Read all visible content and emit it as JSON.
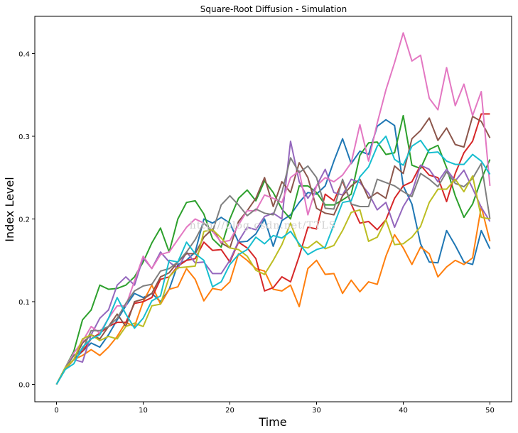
{
  "chart_data": {
    "type": "line",
    "title": "Square-Root Diffusion - Simulation",
    "xlabel": "Time",
    "ylabel": "Index Level",
    "xlim": [
      -2.5,
      52.5
    ],
    "ylim": [
      -0.021,
      0.445
    ],
    "xticks": [
      0,
      10,
      20,
      30,
      40,
      50
    ],
    "xtick_labels": [
      "0",
      "10",
      "20",
      "30",
      "40",
      "50"
    ],
    "yticks": [
      0.0,
      0.1,
      0.2,
      0.3,
      0.4
    ],
    "ytick_labels": [
      "0.0",
      "0.1",
      "0.2",
      "0.3",
      "0.4"
    ],
    "grid": false,
    "legend": "none",
    "x": [
      0,
      1,
      2,
      3,
      4,
      5,
      6,
      7,
      8,
      9,
      10,
      11,
      12,
      13,
      14,
      15,
      16,
      17,
      18,
      19,
      20,
      21,
      22,
      23,
      24,
      25,
      26,
      27,
      28,
      29,
      30,
      31,
      32,
      33,
      34,
      35,
      36,
      37,
      38,
      39,
      40,
      41,
      42,
      43,
      44,
      45,
      46,
      47,
      48,
      49,
      50
    ],
    "series": [
      {
        "color": "#1f77b4",
        "values": [
          0.0,
          0.018,
          0.03,
          0.04,
          0.05,
          0.045,
          0.06,
          0.078,
          0.095,
          0.11,
          0.105,
          0.11,
          0.1,
          0.115,
          0.145,
          0.15,
          0.16,
          0.2,
          0.195,
          0.202,
          0.195,
          0.172,
          0.173,
          0.182,
          0.2,
          0.167,
          0.198,
          0.205,
          0.22,
          0.232,
          0.23,
          0.24,
          0.27,
          0.297,
          0.267,
          0.282,
          0.278,
          0.312,
          0.32,
          0.313,
          0.24,
          0.218,
          0.17,
          0.148,
          0.147,
          0.186,
          0.168,
          0.148,
          0.145,
          0.186,
          0.164
        ]
      },
      {
        "color": "#ff7f0e",
        "values": [
          0.0,
          0.018,
          0.03,
          0.035,
          0.042,
          0.035,
          0.045,
          0.058,
          0.075,
          0.07,
          0.1,
          0.12,
          0.097,
          0.115,
          0.118,
          0.14,
          0.127,
          0.101,
          0.116,
          0.114,
          0.124,
          0.158,
          0.15,
          0.14,
          0.137,
          0.115,
          0.113,
          0.12,
          0.094,
          0.14,
          0.15,
          0.133,
          0.134,
          0.11,
          0.126,
          0.112,
          0.124,
          0.121,
          0.155,
          0.181,
          0.165,
          0.145,
          0.166,
          0.158,
          0.13,
          0.142,
          0.15,
          0.145,
          0.153,
          0.215,
          0.173
        ]
      },
      {
        "color": "#2ca02c",
        "values": [
          0.0,
          0.02,
          0.04,
          0.078,
          0.09,
          0.12,
          0.115,
          0.116,
          0.12,
          0.13,
          0.148,
          0.171,
          0.189,
          0.16,
          0.2,
          0.22,
          0.222,
          0.206,
          0.176,
          0.166,
          0.2,
          0.225,
          0.235,
          0.222,
          0.246,
          0.232,
          0.212,
          0.2,
          0.24,
          0.24,
          0.232,
          0.217,
          0.217,
          0.223,
          0.23,
          0.277,
          0.292,
          0.293,
          0.278,
          0.28,
          0.325,
          0.265,
          0.261,
          0.284,
          0.289,
          0.262,
          0.228,
          0.202,
          0.218,
          0.248,
          0.272
        ]
      },
      {
        "color": "#d62728",
        "values": [
          0.0,
          0.02,
          0.035,
          0.04,
          0.055,
          0.062,
          0.07,
          0.075,
          0.075,
          0.098,
          0.1,
          0.105,
          0.127,
          0.13,
          0.143,
          0.15,
          0.152,
          0.172,
          0.162,
          0.163,
          0.148,
          0.172,
          0.165,
          0.152,
          0.113,
          0.117,
          0.13,
          0.124,
          0.155,
          0.19,
          0.188,
          0.23,
          0.222,
          0.246,
          0.218,
          0.195,
          0.197,
          0.187,
          0.199,
          0.225,
          0.24,
          0.245,
          0.265,
          0.253,
          0.25,
          0.221,
          0.255,
          0.28,
          0.294,
          0.327,
          0.327
        ]
      },
      {
        "color": "#9467bd",
        "values": [
          0.0,
          0.02,
          0.03,
          0.027,
          0.06,
          0.08,
          0.09,
          0.12,
          0.13,
          0.12,
          0.153,
          0.14,
          0.16,
          0.148,
          0.14,
          0.16,
          0.147,
          0.148,
          0.134,
          0.134,
          0.15,
          0.173,
          0.19,
          0.187,
          0.203,
          0.207,
          0.2,
          0.294,
          0.245,
          0.225,
          0.24,
          0.26,
          0.232,
          0.229,
          0.248,
          0.244,
          0.231,
          0.211,
          0.22,
          0.19,
          0.215,
          0.232,
          0.265,
          0.26,
          0.245,
          0.26,
          0.246,
          0.259,
          0.237,
          0.214,
          0.197
        ]
      },
      {
        "color": "#8c564b",
        "values": [
          0.0,
          0.02,
          0.03,
          0.05,
          0.06,
          0.055,
          0.07,
          0.085,
          0.07,
          0.1,
          0.103,
          0.11,
          0.13,
          0.135,
          0.148,
          0.158,
          0.158,
          0.178,
          0.188,
          0.171,
          0.165,
          0.197,
          0.21,
          0.225,
          0.25,
          0.215,
          0.245,
          0.232,
          0.268,
          0.25,
          0.213,
          0.207,
          0.205,
          0.228,
          0.24,
          0.248,
          0.225,
          0.232,
          0.225,
          0.264,
          0.255,
          0.297,
          0.307,
          0.322,
          0.295,
          0.31,
          0.29,
          0.287,
          0.324,
          0.318,
          0.298
        ]
      },
      {
        "color": "#e377c2",
        "values": [
          0.0,
          0.02,
          0.038,
          0.052,
          0.07,
          0.062,
          0.08,
          0.095,
          0.095,
          0.125,
          0.155,
          0.14,
          0.157,
          0.16,
          0.175,
          0.19,
          0.2,
          0.195,
          0.185,
          0.172,
          0.174,
          0.193,
          0.21,
          0.21,
          0.229,
          0.225,
          0.22,
          0.25,
          0.258,
          0.205,
          0.24,
          0.25,
          0.245,
          0.253,
          0.268,
          0.314,
          0.27,
          0.316,
          0.356,
          0.389,
          0.425,
          0.391,
          0.398,
          0.346,
          0.332,
          0.383,
          0.337,
          0.363,
          0.325,
          0.354,
          0.24
        ]
      },
      {
        "color": "#7f7f7f",
        "values": [
          0.0,
          0.02,
          0.035,
          0.042,
          0.065,
          0.065,
          0.07,
          0.08,
          0.098,
          0.113,
          0.119,
          0.121,
          0.137,
          0.14,
          0.148,
          0.16,
          0.175,
          0.195,
          0.185,
          0.217,
          0.228,
          0.217,
          0.204,
          0.212,
          0.207,
          0.205,
          0.232,
          0.274,
          0.256,
          0.264,
          0.25,
          0.213,
          0.212,
          0.248,
          0.218,
          0.215,
          0.215,
          0.248,
          0.244,
          0.24,
          0.233,
          0.227,
          0.255,
          0.248,
          0.239,
          0.257,
          0.243,
          0.239,
          0.249,
          0.267,
          0.2
        ]
      },
      {
        "color": "#bcbd22",
        "values": [
          0.0,
          0.02,
          0.03,
          0.055,
          0.06,
          0.053,
          0.058,
          0.055,
          0.07,
          0.074,
          0.07,
          0.095,
          0.097,
          0.13,
          0.141,
          0.142,
          0.143,
          0.185,
          0.187,
          0.177,
          0.165,
          0.163,
          0.155,
          0.138,
          0.133,
          0.15,
          0.169,
          0.195,
          0.167,
          0.165,
          0.173,
          0.164,
          0.168,
          0.186,
          0.208,
          0.211,
          0.173,
          0.178,
          0.199,
          0.169,
          0.17,
          0.178,
          0.191,
          0.22,
          0.236,
          0.236,
          0.248,
          0.233,
          0.252,
          0.202,
          0.2
        ]
      },
      {
        "color": "#17becf",
        "values": [
          0.0,
          0.018,
          0.025,
          0.045,
          0.055,
          0.06,
          0.08,
          0.105,
          0.085,
          0.068,
          0.08,
          0.101,
          0.107,
          0.15,
          0.148,
          0.172,
          0.158,
          0.15,
          0.118,
          0.124,
          0.145,
          0.157,
          0.163,
          0.178,
          0.17,
          0.18,
          0.177,
          0.185,
          0.17,
          0.157,
          0.163,
          0.166,
          0.193,
          0.22,
          0.222,
          0.251,
          0.263,
          0.288,
          0.3,
          0.272,
          0.265,
          0.288,
          0.295,
          0.28,
          0.281,
          0.27,
          0.266,
          0.266,
          0.278,
          0.27,
          0.254
        ]
      }
    ]
  }
}
